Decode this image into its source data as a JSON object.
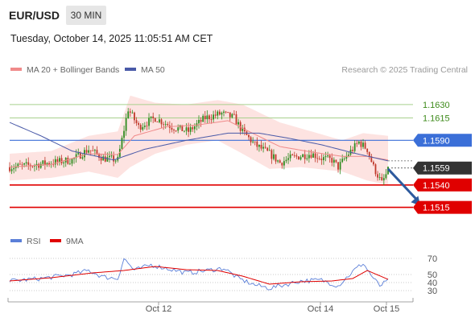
{
  "header": {
    "symbol": "EUR/USD",
    "timeframe": "30 MIN",
    "datetime": "Tuesday, October 14, 2025 11:05:51 AM CET"
  },
  "legend": {
    "ma20_label": "MA 20 + Bollinger Bands",
    "ma50_label": "MA 50",
    "credit": "Research © 2025 Trading Central",
    "rsi_label": "RSI",
    "rsi_ma_label": "9MA"
  },
  "colors": {
    "bull": "#2e8b1e",
    "bear": "#c0392b",
    "ma20": "#f08a8a",
    "ma50": "#4a5aa8",
    "band_fill": "#fde3e1",
    "resistance_green": "#a8d08d",
    "pivot_blue": "#3b6fd8",
    "support_red": "#e00000",
    "arrow": "#2d5a9e",
    "rsi": "#5b7fd8",
    "rsi_ma": "#e00000"
  },
  "chart_data": [
    {
      "type": "line",
      "description_series": "price",
      "ylim": [
        1.1493,
        1.1656
      ],
      "x_tick_labels": [
        "Oct 12",
        "Oct 14",
        "Oct 15"
      ],
      "levels": [
        {
          "value": 1.163,
          "label": "1.1630",
          "kind": "resistance"
        },
        {
          "value": 1.1615,
          "label": "1.1615",
          "kind": "resistance"
        },
        {
          "value": 1.159,
          "label": "1.1590",
          "kind": "pivot"
        },
        {
          "value": 1.1559,
          "label": "1.1559",
          "kind": "last"
        },
        {
          "value": 1.154,
          "label": "1.1540",
          "kind": "support"
        },
        {
          "value": 1.1515,
          "label": "1.1515",
          "kind": "support"
        }
      ],
      "anchors": [
        {
          "x": 0,
          "y": 1.156
        },
        {
          "x": 10,
          "y": 1.1562
        },
        {
          "x": 20,
          "y": 1.1565
        },
        {
          "x": 30,
          "y": 1.1568
        },
        {
          "x": 38,
          "y": 1.158
        },
        {
          "x": 45,
          "y": 1.157
        },
        {
          "x": 52,
          "y": 1.1568
        },
        {
          "x": 57,
          "y": 1.1625
        },
        {
          "x": 62,
          "y": 1.1605
        },
        {
          "x": 70,
          "y": 1.1615
        },
        {
          "x": 78,
          "y": 1.1605
        },
        {
          "x": 86,
          "y": 1.16
        },
        {
          "x": 94,
          "y": 1.1615
        },
        {
          "x": 102,
          "y": 1.162
        },
        {
          "x": 108,
          "y": 1.1615
        },
        {
          "x": 112,
          "y": 1.16
        },
        {
          "x": 118,
          "y": 1.1585
        },
        {
          "x": 125,
          "y": 1.1575
        },
        {
          "x": 130,
          "y": 1.1565
        },
        {
          "x": 135,
          "y": 1.157
        },
        {
          "x": 145,
          "y": 1.1575
        },
        {
          "x": 150,
          "y": 1.157
        },
        {
          "x": 155,
          "y": 1.1568
        },
        {
          "x": 158,
          "y": 1.156
        },
        {
          "x": 163,
          "y": 1.1575
        },
        {
          "x": 168,
          "y": 1.1588
        },
        {
          "x": 172,
          "y": 1.158
        },
        {
          "x": 175,
          "y": 1.156
        },
        {
          "x": 179,
          "y": 1.1542
        },
        {
          "x": 182,
          "y": 1.1556
        }
      ],
      "band_upper_anchors": [
        {
          "x": 0,
          "y": 1.1575
        },
        {
          "x": 20,
          "y": 1.1578
        },
        {
          "x": 38,
          "y": 1.1595
        },
        {
          "x": 52,
          "y": 1.16
        },
        {
          "x": 58,
          "y": 1.164
        },
        {
          "x": 70,
          "y": 1.1632
        },
        {
          "x": 85,
          "y": 1.163
        },
        {
          "x": 100,
          "y": 1.1635
        },
        {
          "x": 112,
          "y": 1.163
        },
        {
          "x": 130,
          "y": 1.161
        },
        {
          "x": 145,
          "y": 1.16
        },
        {
          "x": 160,
          "y": 1.159
        },
        {
          "x": 170,
          "y": 1.1598
        },
        {
          "x": 182,
          "y": 1.1595
        }
      ],
      "band_lower_anchors": [
        {
          "x": 0,
          "y": 1.1545
        },
        {
          "x": 20,
          "y": 1.1548
        },
        {
          "x": 38,
          "y": 1.1555
        },
        {
          "x": 52,
          "y": 1.1548
        },
        {
          "x": 58,
          "y": 1.156
        },
        {
          "x": 70,
          "y": 1.1575
        },
        {
          "x": 85,
          "y": 1.1585
        },
        {
          "x": 100,
          "y": 1.159
        },
        {
          "x": 112,
          "y": 1.1575
        },
        {
          "x": 125,
          "y": 1.1558
        },
        {
          "x": 140,
          "y": 1.156
        },
        {
          "x": 160,
          "y": 1.1555
        },
        {
          "x": 172,
          "y": 1.1545
        },
        {
          "x": 182,
          "y": 1.154
        }
      ],
      "ma20_anchors": [
        {
          "x": 0,
          "y": 1.156
        },
        {
          "x": 20,
          "y": 1.1563
        },
        {
          "x": 38,
          "y": 1.1575
        },
        {
          "x": 52,
          "y": 1.1574
        },
        {
          "x": 60,
          "y": 1.1595
        },
        {
          "x": 75,
          "y": 1.1605
        },
        {
          "x": 90,
          "y": 1.1607
        },
        {
          "x": 105,
          "y": 1.1612
        },
        {
          "x": 115,
          "y": 1.16
        },
        {
          "x": 130,
          "y": 1.1583
        },
        {
          "x": 145,
          "y": 1.1577
        },
        {
          "x": 160,
          "y": 1.1572
        },
        {
          "x": 172,
          "y": 1.1572
        },
        {
          "x": 182,
          "y": 1.1568
        }
      ],
      "ma50_anchors": [
        {
          "x": 0,
          "y": 1.161
        },
        {
          "x": 15,
          "y": 1.1595
        },
        {
          "x": 30,
          "y": 1.1578
        },
        {
          "x": 50,
          "y": 1.1568
        },
        {
          "x": 65,
          "y": 1.158
        },
        {
          "x": 85,
          "y": 1.159
        },
        {
          "x": 105,
          "y": 1.1598
        },
        {
          "x": 120,
          "y": 1.1598
        },
        {
          "x": 135,
          "y": 1.1592
        },
        {
          "x": 150,
          "y": 1.1585
        },
        {
          "x": 165,
          "y": 1.1576
        },
        {
          "x": 182,
          "y": 1.1567
        }
      ],
      "projection": {
        "from": {
          "x": 182,
          "y": 1.1558
        },
        "to": {
          "x": 196,
          "y": 1.1515
        }
      }
    },
    {
      "type": "line",
      "description_series": "rsi",
      "ylim": [
        22,
        78
      ],
      "y_ticks": [
        70,
        50,
        40,
        30
      ],
      "anchors": [
        {
          "x": 0,
          "y": 42
        },
        {
          "x": 15,
          "y": 45
        },
        {
          "x": 30,
          "y": 50
        },
        {
          "x": 38,
          "y": 55
        },
        {
          "x": 45,
          "y": 47
        },
        {
          "x": 52,
          "y": 45
        },
        {
          "x": 55,
          "y": 70
        },
        {
          "x": 60,
          "y": 55
        },
        {
          "x": 68,
          "y": 62
        },
        {
          "x": 75,
          "y": 58
        },
        {
          "x": 85,
          "y": 52
        },
        {
          "x": 95,
          "y": 55
        },
        {
          "x": 103,
          "y": 58
        },
        {
          "x": 110,
          "y": 45
        },
        {
          "x": 118,
          "y": 37
        },
        {
          "x": 125,
          "y": 33
        },
        {
          "x": 130,
          "y": 36
        },
        {
          "x": 140,
          "y": 42
        },
        {
          "x": 150,
          "y": 43
        },
        {
          "x": 158,
          "y": 36
        },
        {
          "x": 166,
          "y": 56
        },
        {
          "x": 170,
          "y": 64
        },
        {
          "x": 175,
          "y": 45
        },
        {
          "x": 178,
          "y": 36
        },
        {
          "x": 182,
          "y": 42
        }
      ],
      "ma_anchors": [
        {
          "x": 0,
          "y": 42
        },
        {
          "x": 20,
          "y": 46
        },
        {
          "x": 40,
          "y": 52
        },
        {
          "x": 55,
          "y": 55
        },
        {
          "x": 70,
          "y": 60
        },
        {
          "x": 85,
          "y": 56
        },
        {
          "x": 100,
          "y": 55
        },
        {
          "x": 112,
          "y": 48
        },
        {
          "x": 125,
          "y": 38
        },
        {
          "x": 140,
          "y": 41
        },
        {
          "x": 155,
          "y": 42
        },
        {
          "x": 165,
          "y": 45
        },
        {
          "x": 172,
          "y": 55
        },
        {
          "x": 182,
          "y": 44
        }
      ]
    }
  ]
}
